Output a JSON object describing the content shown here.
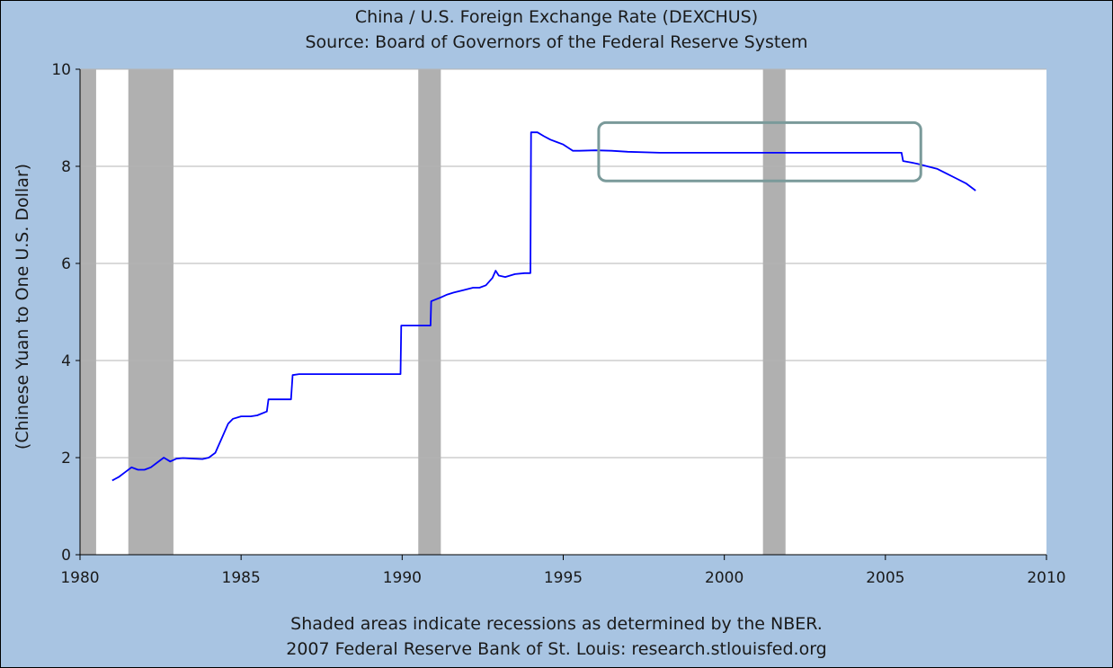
{
  "chart_data": {
    "type": "line",
    "title": "China / U.S. Foreign Exchange Rate (DEXCHUS)",
    "subtitle": "Source: Board of Governors of the Federal Reserve System",
    "ylabel": "(Chinese Yuan to One U.S. Dollar)",
    "xlabel": "",
    "xlim": [
      1980,
      2010
    ],
    "ylim": [
      0,
      10
    ],
    "x_ticks": [
      1980,
      1985,
      1990,
      1995,
      2000,
      2005,
      2010
    ],
    "y_ticks": [
      0,
      2,
      4,
      6,
      8,
      10
    ],
    "grid": "horizontal",
    "colors": {
      "series": "#0000ff",
      "recession": "#b0b0b0",
      "highlight": "#7a9a9a",
      "plot_bg": "#ffffff",
      "frame_bg": "#a8c4e2"
    },
    "recessions": [
      {
        "start": 1980.0,
        "end": 1980.5
      },
      {
        "start": 1981.5,
        "end": 1982.9
      },
      {
        "start": 1990.5,
        "end": 1991.2
      },
      {
        "start": 2001.2,
        "end": 2001.9
      }
    ],
    "highlight_box": {
      "x_start": 1996.1,
      "x_end": 2006.1,
      "y_low": 7.7,
      "y_high": 8.9
    },
    "series": [
      {
        "x": [
          1981.0,
          1981.2,
          1981.4,
          1981.6,
          1981.8,
          1982.0,
          1982.2,
          1982.4,
          1982.6,
          1982.8,
          1983.0,
          1983.2,
          1983.5,
          1983.8,
          1984.0,
          1984.2,
          1984.4,
          1984.6,
          1984.75,
          1985.0,
          1985.3,
          1985.5,
          1985.8,
          1985.85,
          1986.0,
          1986.3,
          1986.55,
          1986.6,
          1986.8,
          1987.0,
          1988.0,
          1989.0,
          1989.95,
          1989.97,
          1990.5,
          1990.88,
          1990.9,
          1991.2,
          1991.4,
          1991.6,
          1991.9,
          1992.2,
          1992.4,
          1992.6,
          1992.8,
          1992.9,
          1993.0,
          1993.2,
          1993.5,
          1993.8,
          1993.98,
          1994.0,
          1994.2,
          1994.4,
          1994.6,
          1994.8,
          1995.0,
          1995.3,
          1995.5,
          1996.0,
          1996.5,
          1997.0,
          1998.0,
          1999.0,
          2000.0,
          2001.0,
          2002.0,
          2003.0,
          2004.0,
          2005.0,
          2005.5,
          2005.55,
          2005.8,
          2006.0,
          2006.3,
          2006.6,
          2006.9,
          2007.2,
          2007.5,
          2007.8
        ],
        "y": [
          1.53,
          1.6,
          1.7,
          1.8,
          1.75,
          1.75,
          1.8,
          1.9,
          2.0,
          1.92,
          1.98,
          1.99,
          1.98,
          1.97,
          2.0,
          2.1,
          2.4,
          2.7,
          2.8,
          2.85,
          2.85,
          2.87,
          2.95,
          3.2,
          3.2,
          3.2,
          3.2,
          3.7,
          3.72,
          3.72,
          3.72,
          3.72,
          3.72,
          4.72,
          4.72,
          4.72,
          5.22,
          5.3,
          5.36,
          5.4,
          5.45,
          5.5,
          5.5,
          5.55,
          5.7,
          5.85,
          5.75,
          5.72,
          5.78,
          5.8,
          5.8,
          8.7,
          8.7,
          8.62,
          8.55,
          8.5,
          8.45,
          8.32,
          8.32,
          8.33,
          8.32,
          8.3,
          8.28,
          8.28,
          8.28,
          8.28,
          8.28,
          8.28,
          8.28,
          8.28,
          8.28,
          8.11,
          8.08,
          8.05,
          8.0,
          7.95,
          7.85,
          7.75,
          7.65,
          7.5
        ]
      }
    ]
  },
  "footer": {
    "line1": "Shaded areas indicate recessions as determined by the NBER.",
    "line2": "2007 Federal Reserve Bank of St. Louis: research.stlouisfed.org"
  }
}
